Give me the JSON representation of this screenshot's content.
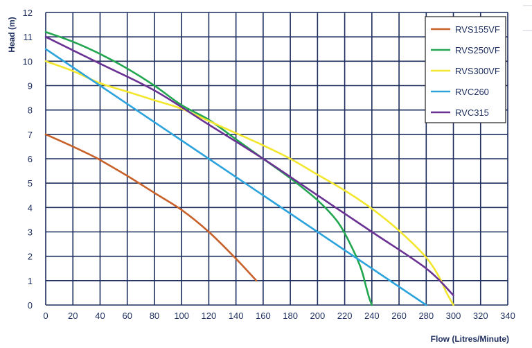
{
  "chart_data": {
    "type": "line",
    "title": "",
    "xlabel": "Flow (Litres/Minute)",
    "ylabel": "Head (m)",
    "xlim": [
      0,
      340
    ],
    "ylim": [
      0,
      12
    ],
    "xticks": [
      "0",
      "20",
      "40",
      "60",
      "80",
      "100",
      "120",
      "140",
      "160",
      "180",
      "200",
      "220",
      "240",
      "260",
      "280",
      "300",
      "320",
      "340"
    ],
    "yticks": [
      "0",
      "1",
      "2",
      "3",
      "4",
      "5",
      "6",
      "7",
      "8",
      "9",
      "10",
      "11",
      "12"
    ],
    "grid": true,
    "legend_position": "top-right",
    "series": [
      {
        "name": "RVS155VF",
        "color": "#c8612a",
        "x": [
          0,
          20,
          35,
          40,
          60,
          80,
          100,
          120,
          140,
          155
        ],
        "y": [
          7.0,
          6.5,
          6.1,
          5.95,
          5.3,
          4.6,
          3.9,
          3.0,
          1.9,
          1.0
        ]
      },
      {
        "name": "RVS250VF",
        "color": "#22a650",
        "x": [
          0,
          20,
          40,
          60,
          80,
          100,
          120,
          140,
          160,
          180,
          200,
          215,
          225,
          232,
          236,
          238,
          240
        ],
        "y": [
          11.2,
          10.8,
          10.3,
          9.7,
          9.0,
          8.2,
          7.6,
          6.8,
          6.0,
          5.2,
          4.3,
          3.4,
          2.4,
          1.5,
          0.7,
          0.3,
          0.0
        ]
      },
      {
        "name": "RVS300VF",
        "color": "#f2e72e",
        "x": [
          0,
          20,
          40,
          60,
          80,
          100,
          120,
          140,
          160,
          180,
          200,
          220,
          240,
          260,
          280,
          290,
          295,
          300
        ],
        "y": [
          10.0,
          9.6,
          9.1,
          8.75,
          8.4,
          8.05,
          7.55,
          7.05,
          6.55,
          6.0,
          5.35,
          4.7,
          3.95,
          3.05,
          1.95,
          1.1,
          0.5,
          0.0
        ]
      },
      {
        "name": "RVC260",
        "color": "#2ca3dc",
        "x": [
          0,
          280
        ],
        "y": [
          10.5,
          0.0
        ]
      },
      {
        "name": "RVC315",
        "color": "#6a3293",
        "x": [
          0,
          40,
          80,
          120,
          160,
          200,
          240,
          280,
          300
        ],
        "y": [
          11.0,
          9.9,
          8.8,
          7.4,
          6.0,
          4.5,
          3.0,
          1.5,
          0.4
        ]
      }
    ]
  }
}
